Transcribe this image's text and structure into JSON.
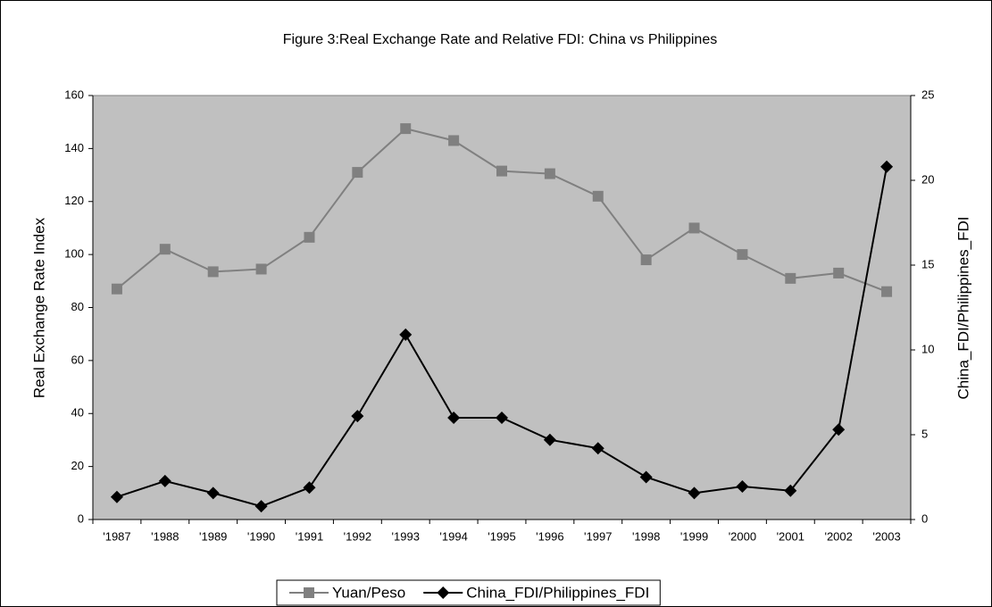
{
  "chart_data": {
    "type": "line",
    "title": "Figure 3:Real Exchange Rate and Relative FDI: China vs Philippines",
    "ylabel": "Real Exchange Rate Index",
    "y2label": "China_FDI/Philippines_FDI",
    "categories": [
      "'1987",
      "'1988",
      "'1989",
      "'1990",
      "'1991",
      "'1992",
      "'1993",
      "'1994",
      "'1995",
      "'1996",
      "'1997",
      "'1998",
      "'1999",
      "'2000",
      "'2001",
      "'2002",
      "'2003"
    ],
    "series": [
      {
        "name": "Yuan/Peso",
        "color": "#808080",
        "marker": "square",
        "axis": "y",
        "values": [
          87,
          102,
          93.5,
          94.5,
          106.5,
          131,
          147.5,
          143,
          131.5,
          130.5,
          122,
          98,
          110,
          100,
          91,
          93,
          86
        ]
      },
      {
        "name": "China_FDI/Philippines_FDI",
        "color": "#000000",
        "marker": "diamond",
        "axis": "y2",
        "values": [
          1.33,
          2.27,
          1.56,
          0.78,
          1.88,
          6.1,
          10.9,
          6.0,
          6.0,
          4.7,
          4.2,
          2.5,
          1.56,
          1.95,
          1.7,
          5.3,
          20.8
        ]
      }
    ],
    "ylim": [
      0,
      160
    ],
    "yticks": [
      0,
      20,
      40,
      60,
      80,
      100,
      120,
      140,
      160
    ],
    "y2lim": [
      0,
      25
    ],
    "y2ticks": [
      0,
      5,
      10,
      15,
      20,
      25
    ],
    "plot_background": "#c0c0c0",
    "legend": "bottom"
  }
}
